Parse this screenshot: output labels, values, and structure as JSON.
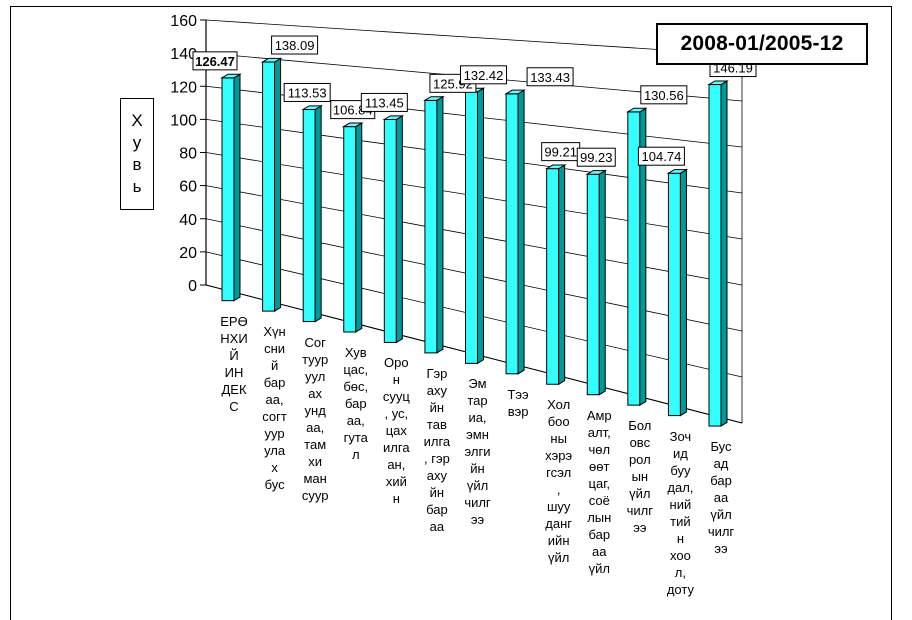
{
  "chart_data": {
    "type": "bar",
    "title": "2008-01/2005-12",
    "ylabel": "Хувь",
    "ylim": [
      0,
      160
    ],
    "yticks": [
      "0",
      "20",
      "40",
      "60",
      "80",
      "100",
      "120",
      "140",
      "160"
    ],
    "grid": true,
    "bar_color": "#33ffff",
    "categories": [
      "ЕРӨНХИЙ ИНДЕКС",
      "Хүнсний бараа, согтууруулах бус",
      "Согтууруулах ундаа, тамхи мансуур",
      "Хувцас, бөс, бараа, гутал",
      "Орон сууц, ус, цахилгаан, хийн",
      "Гэр ахуйн тавилга, гэр ахуйн бараа",
      "Эмнэлгийн үйлчилгээ",
      "Тээвэр",
      "Холбооны хэрэгсэл, шуудангийн үйл",
      "Амралт, чөлөөт цаг, соёлын бараа үйл",
      "Боловсролын үйлчилгээ",
      "Зочид буудал, нийтийн хоол, доту",
      "Бусад бараа үйлчилгээ"
    ],
    "category_lines": [
      [
        "ЕРӨ",
        "НХИ",
        "Й",
        "ИН",
        "ДЕК",
        "С"
      ],
      [
        "Хүн",
        "сни",
        "й",
        "бар",
        "аа,",
        "согт",
        "уур",
        "ула",
        "х",
        "бус"
      ],
      [
        "Сог",
        "туур",
        "уул",
        "ах",
        "унд",
        "аа,",
        "там",
        "хи",
        "ман",
        "суур"
      ],
      [
        "Хув",
        "цас,",
        "бөс,",
        "бар",
        "аа,",
        "гута",
        "л"
      ],
      [
        "Оро",
        "н",
        "сууц",
        ", ус,",
        "цах",
        "илга",
        "ан,",
        "хий",
        "н"
      ],
      [
        "Гэр",
        "аху",
        "йн",
        "тав",
        "илга",
        ", гэр",
        "аху",
        "йн",
        "бар",
        "аа"
      ],
      [
        "Эм",
        "тар",
        "иа,",
        "эмн",
        "элги",
        "йн",
        "үйл",
        "чилг",
        "ээ"
      ],
      [
        "Тээ",
        "вэр"
      ],
      [
        "Хол",
        "боо",
        "ны",
        "хэрэ",
        "гсэл",
        ",",
        "шуу",
        "данг",
        "ийн",
        "үйл"
      ],
      [
        "Амр",
        "алт,",
        "чөл",
        "өөт",
        "цаг,",
        "соё",
        "лын",
        "бар",
        "аа",
        "үйл"
      ],
      [
        "Бол",
        "овс",
        "рол",
        "ын",
        "үйл",
        "чилг",
        "ээ"
      ],
      [
        "Зоч",
        "ид",
        "буу",
        "дал,",
        "ний",
        "тий",
        "н",
        "хоо",
        "л,",
        "доту"
      ],
      [
        "Бус",
        "ад",
        "бар",
        "аа",
        "үйл",
        "чилг",
        "ээ"
      ]
    ],
    "values": [
      126.47,
      138.09,
      113.53,
      106.84,
      113.45,
      125.92,
      132.42,
      133.43,
      99.21,
      99.23,
      130.56,
      104.74,
      146.19
    ],
    "value_labels": [
      "126.47",
      "138.09",
      "113.53",
      "106.84",
      "113.45",
      "125.92",
      "132.42",
      "133.43",
      "99.21",
      "99.23",
      "130.56",
      "104.74",
      "146.19"
    ]
  }
}
